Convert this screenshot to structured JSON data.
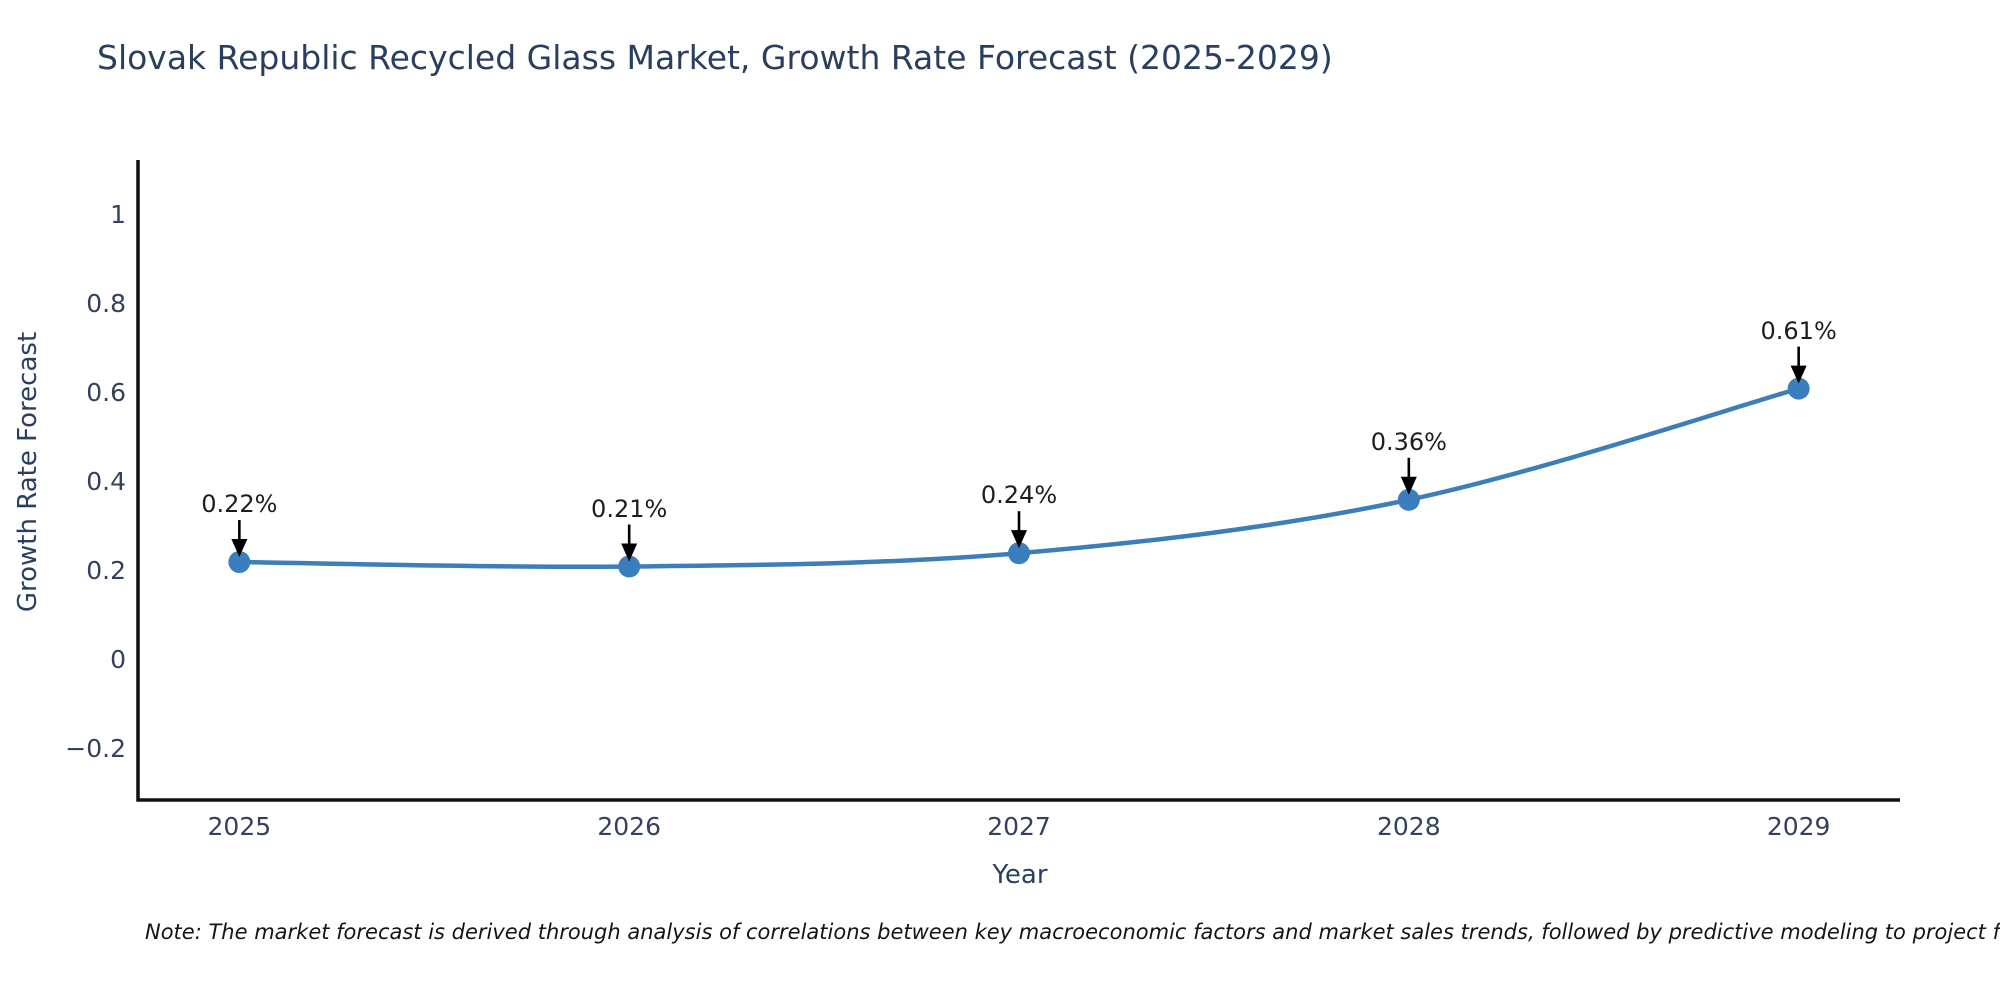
{
  "page": {
    "note": "Note: The market forecast is derived through analysis of correlations between key macroeconomic factors and market sales trends, followed by predictive modeling to project future sa"
  },
  "chart_data": {
    "type": "line",
    "title": "Slovak Republic Recycled Glass Market, Growth Rate Forecast (2025-2029)",
    "xlabel": "Year",
    "ylabel": "Growth Rate Forecast",
    "x": [
      2025,
      2026,
      2027,
      2028,
      2029
    ],
    "series": [
      {
        "name": "Growth Rate Forecast (%)",
        "values": [
          0.22,
          0.21,
          0.24,
          0.36,
          0.61
        ]
      }
    ],
    "point_labels": [
      "0.22%",
      "0.21%",
      "0.24%",
      "0.36%",
      "0.61%"
    ],
    "xticks": {
      "values": [
        2025,
        2026,
        2027,
        2028,
        2029
      ],
      "labels": [
        "2025",
        "2026",
        "2027",
        "2028",
        "2029"
      ]
    },
    "yticks": {
      "values": [
        1,
        0.8,
        0.6,
        0.4,
        0.2,
        0,
        -0.2
      ],
      "labels": [
        "1",
        "0.8",
        "0.6",
        "0.4",
        "0.2",
        "0",
        "−0.2"
      ]
    },
    "xlim": [
      2024.74,
      2029.26
    ],
    "ylim": [
      -0.315,
      1.124
    ],
    "grid": false,
    "legend": "none",
    "curve": "smooth",
    "line_color": "#3d7db8",
    "marker_color": "#3a7ebf",
    "axis_color": "#111111",
    "annotation_arrow_color": "#000000"
  }
}
